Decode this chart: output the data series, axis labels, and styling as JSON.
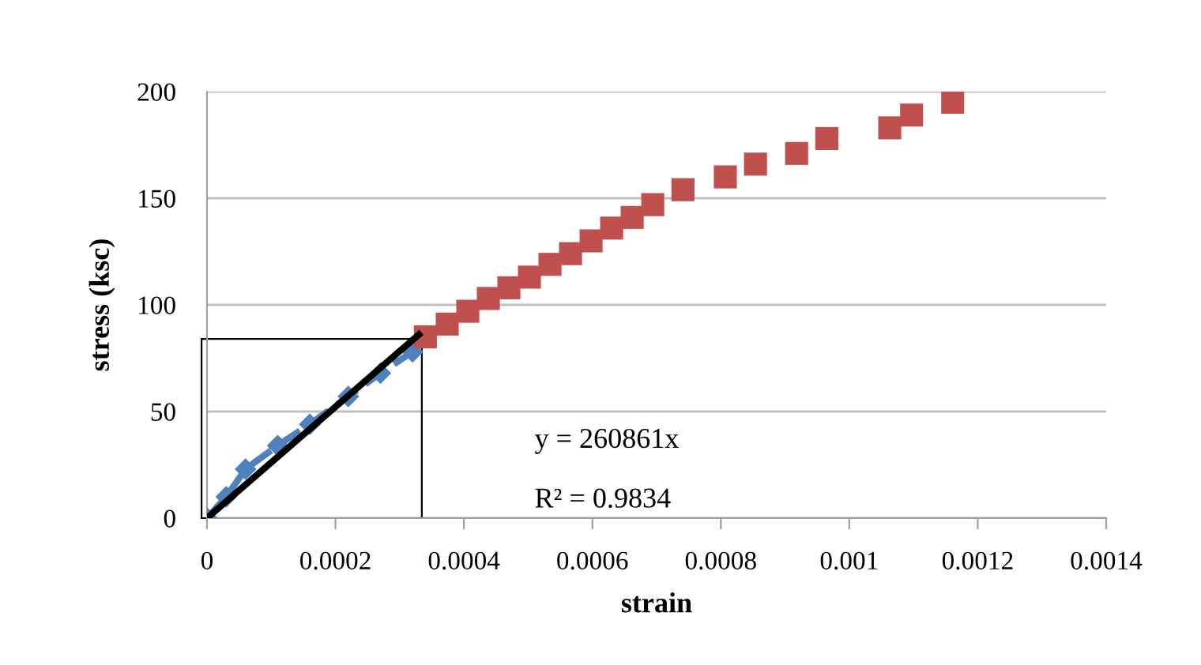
{
  "chart_data": {
    "type": "scatter",
    "xlabel": "strain",
    "ylabel": "stress (ksc)",
    "xlim": [
      0,
      0.0014
    ],
    "xticks": [
      0,
      0.0002,
      0.0004,
      0.0006,
      0.0008,
      0.001,
      0.0012,
      0.0014
    ],
    "ylim": [
      0,
      200
    ],
    "yticks": [
      0,
      50,
      100,
      150,
      200
    ],
    "grid": "y",
    "series": [
      {
        "type": "line",
        "color": "#4f81bd",
        "marker": "diamond",
        "line_style": "dashed",
        "x": [
          0,
          3e-05,
          6e-05,
          0.00011,
          0.00016,
          0.00022,
          0.00027,
          0.00032
        ],
        "values": [
          0,
          10,
          23,
          34,
          44,
          57,
          68,
          78
        ]
      },
      {
        "color": "#c0504d",
        "marker": "square",
        "x": [
          0.00034,
          0.000374,
          0.000406,
          0.000438,
          0.00047,
          0.000502,
          0.000534,
          0.000566,
          0.000598,
          0.00063,
          0.000662,
          0.000694,
          0.000741,
          0.000807,
          0.000854,
          0.000918,
          0.000965,
          0.001063,
          0.001097,
          0.001161
        ],
        "values": [
          85,
          91,
          97,
          103,
          108,
          113,
          119,
          124,
          130,
          136,
          141,
          147,
          154,
          160,
          166,
          171,
          178,
          183,
          189,
          195
        ]
      },
      {
        "type": "line",
        "color": "#000000",
        "marker": "none",
        "line_style": "solid",
        "x": [
          0,
          0.00033
        ],
        "values": [
          0,
          86.1
        ]
      }
    ],
    "annotations": [
      "y = 260861x",
      "R² = 0.9834"
    ]
  }
}
